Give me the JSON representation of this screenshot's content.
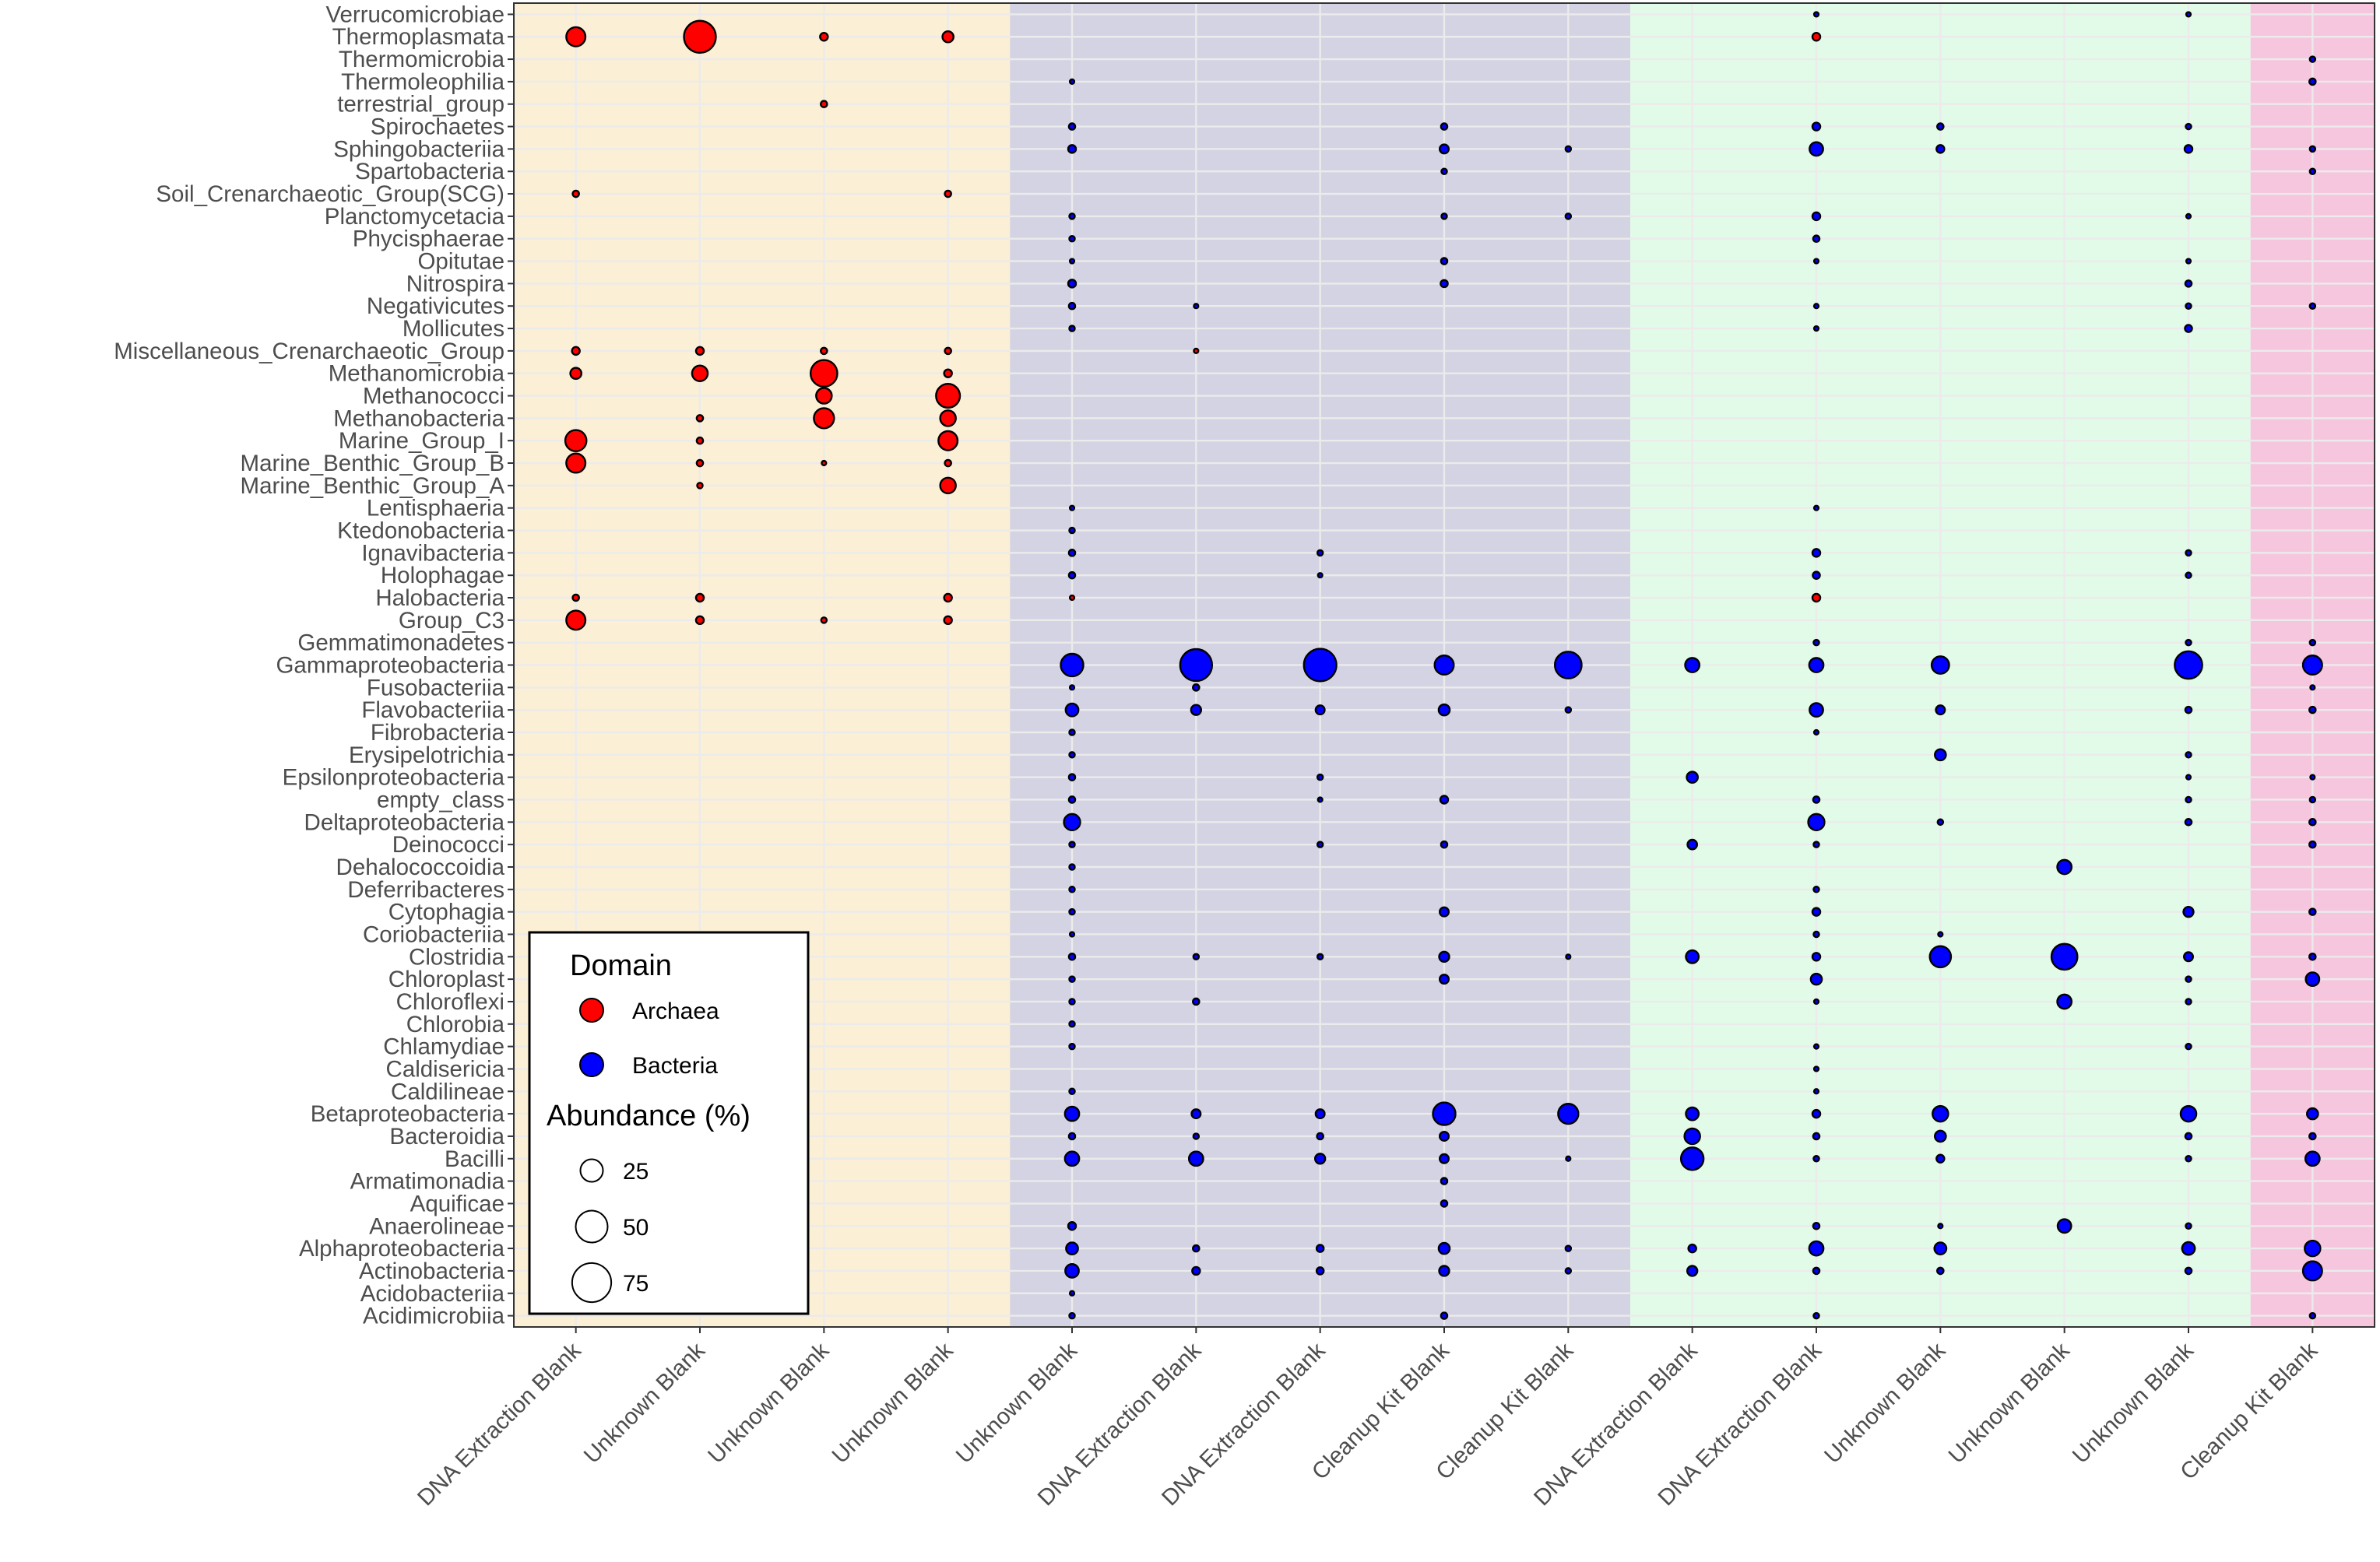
{
  "chart_data": {
    "type": "scatter",
    "title": "",
    "xlabel": "",
    "ylabel": "",
    "x_categories": [
      "DNA Extraction Blank",
      "Unknown Blank",
      "Unknown Blank",
      "Unknown Blank",
      "Unknown Blank",
      "DNA Extraction Blank",
      "DNA Extraction Blank",
      "Cleanup Kit Blank",
      "Cleanup Kit Blank",
      "DNA Extraction Blank",
      "DNA Extraction Blank",
      "Unknown Blank",
      "Unknown Blank",
      "Unknown Blank",
      "Cleanup Kit Blank"
    ],
    "y_categories": [
      "Verrucomicrobiae",
      "Thermoplasmata",
      "Thermomicrobia",
      "Thermoleophilia",
      "terrestrial_group",
      "Spirochaetes",
      "Sphingobacteriia",
      "Spartobacteria",
      "Soil_Crenarchaeotic_Group(SCG)",
      "Planctomycetacia",
      "Phycisphaerae",
      "Opitutae",
      "Nitrospira",
      "Negativicutes",
      "Mollicutes",
      "Miscellaneous_Crenarchaeotic_Group",
      "Methanomicrobia",
      "Methanococci",
      "Methanobacteria",
      "Marine_Group_I",
      "Marine_Benthic_Group_B",
      "Marine_Benthic_Group_A",
      "Lentisphaeria",
      "Ktedonobacteria",
      "Ignavibacteria",
      "Holophagae",
      "Halobacteria",
      "Group_C3",
      "Gemmatimonadetes",
      "Gammaproteobacteria",
      "Fusobacteriia",
      "Flavobacteriia",
      "Fibrobacteria",
      "Erysipelotrichia",
      "Epsilonproteobacteria",
      "empty_class",
      "Deltaproteobacteria",
      "Deinococci",
      "Dehalococcoidia",
      "Deferribacteres",
      "Cytophagia",
      "Coriobacteriia",
      "Clostridia",
      "Chloroplast",
      "Chloroflexi",
      "Chlorobia",
      "Chlamydiae",
      "Caldisericia",
      "Caldilineae",
      "Betaproteobacteria",
      "Bacteroidia",
      "Bacilli",
      "Armatimonadia",
      "Aquificae",
      "Anaerolineae",
      "Alphaproteobacteria",
      "Actinobacteria",
      "Acidobacteriia",
      "Acidimicrobiia"
    ],
    "background_bands": [
      {
        "from": 0,
        "to": 3,
        "color": "#fbefd6"
      },
      {
        "from": 4,
        "to": 8,
        "color": "#d3d3e3"
      },
      {
        "from": 9,
        "to": 13,
        "color": "#e2fbe8"
      },
      {
        "from": 14,
        "to": 14,
        "color": "#f6c6df"
      }
    ],
    "domain_colors": {
      "Archaea": "#ff0000",
      "Bacteria": "#0000ff"
    },
    "legend": {
      "position": "bottom-left",
      "domain_title": "Domain",
      "domain_items": [
        {
          "label": "Archaea",
          "domain": "Archaea"
        },
        {
          "label": "Bacteria",
          "domain": "Bacteria"
        }
      ],
      "size_title": "Abundance (%)",
      "size_items": [
        {
          "label": "25",
          "value": 25
        },
        {
          "label": "50",
          "value": 50
        },
        {
          "label": "75",
          "value": 75
        }
      ]
    },
    "archaea_points": [
      [
        0,
        1,
        18
      ],
      [
        1,
        1,
        50
      ],
      [
        2,
        1,
        3
      ],
      [
        3,
        1,
        6
      ],
      [
        2,
        4,
        2
      ],
      [
        0,
        8,
        2
      ],
      [
        3,
        8,
        2
      ],
      [
        0,
        15,
        3
      ],
      [
        1,
        15,
        3
      ],
      [
        2,
        15,
        2
      ],
      [
        3,
        15,
        2
      ],
      [
        0,
        16,
        6
      ],
      [
        1,
        16,
        12
      ],
      [
        2,
        16,
        35
      ],
      [
        3,
        16,
        3
      ],
      [
        2,
        17,
        12
      ],
      [
        3,
        17,
        28
      ],
      [
        1,
        18,
        2
      ],
      [
        2,
        18,
        20
      ],
      [
        3,
        18,
        12
      ],
      [
        0,
        19,
        22
      ],
      [
        1,
        19,
        2
      ],
      [
        3,
        19,
        18
      ],
      [
        0,
        20,
        18
      ],
      [
        1,
        20,
        2
      ],
      [
        2,
        20,
        1
      ],
      [
        3,
        20,
        2
      ],
      [
        1,
        21,
        1.5
      ],
      [
        3,
        21,
        12
      ],
      [
        0,
        26,
        2
      ],
      [
        1,
        26,
        3
      ],
      [
        3,
        26,
        3
      ],
      [
        4,
        26,
        1
      ],
      [
        0,
        27,
        18
      ],
      [
        1,
        27,
        3
      ],
      [
        2,
        27,
        1.5
      ],
      [
        3,
        27,
        3
      ],
      [
        10,
        1,
        3
      ],
      [
        10,
        26,
        3
      ],
      [
        5,
        15,
        1
      ]
    ],
    "bacteria_rows": {
      "0": [
        [
          10,
          1
        ],
        [
          13,
          1
        ]
      ],
      "2": [
        [
          14,
          1.5
        ]
      ],
      "3": [
        [
          4,
          1
        ],
        [
          14,
          2
        ]
      ],
      "5": [
        [
          4,
          2
        ],
        [
          7,
          2
        ],
        [
          10,
          3
        ],
        [
          11,
          2
        ],
        [
          13,
          1.5
        ]
      ],
      "6": [
        [
          4,
          3
        ],
        [
          7,
          4
        ],
        [
          8,
          1.5
        ],
        [
          10,
          9
        ],
        [
          11,
          3
        ],
        [
          13,
          3
        ],
        [
          14,
          1.5
        ]
      ],
      "7": [
        [
          7,
          1.5
        ],
        [
          14,
          1.5
        ]
      ],
      "9": [
        [
          4,
          1.5
        ],
        [
          7,
          1.5
        ],
        [
          8,
          1.5
        ],
        [
          10,
          3
        ],
        [
          13,
          1
        ]
      ],
      "10": [
        [
          4,
          1.5
        ],
        [
          10,
          2
        ]
      ],
      "11": [
        [
          4,
          1
        ],
        [
          7,
          2
        ],
        [
          10,
          1
        ],
        [
          13,
          1
        ]
      ],
      "12": [
        [
          4,
          3
        ],
        [
          7,
          2.5
        ],
        [
          13,
          2
        ]
      ],
      "13": [
        [
          4,
          2
        ],
        [
          5,
          1
        ],
        [
          10,
          1
        ],
        [
          13,
          1.5
        ],
        [
          14,
          1.5
        ]
      ],
      "14": [
        [
          4,
          1.5
        ],
        [
          10,
          1
        ],
        [
          13,
          2.5
        ]
      ],
      "22": [
        [
          4,
          1
        ],
        [
          10,
          1
        ]
      ],
      "23": [
        [
          4,
          1.5
        ]
      ],
      "24": [
        [
          4,
          2
        ],
        [
          6,
          1.5
        ],
        [
          10,
          3
        ],
        [
          13,
          1.5
        ]
      ],
      "25": [
        [
          4,
          2
        ],
        [
          6,
          1
        ],
        [
          10,
          2.5
        ],
        [
          13,
          1.5
        ]
      ],
      "28": [
        [
          10,
          1.5
        ],
        [
          13,
          1.5
        ],
        [
          14,
          1.5
        ]
      ],
      "29": [
        [
          4,
          25
        ],
        [
          5,
          50
        ],
        [
          6,
          52
        ],
        [
          7,
          18
        ],
        [
          8,
          35
        ],
        [
          9,
          10
        ],
        [
          10,
          10
        ],
        [
          11,
          15
        ],
        [
          13,
          37
        ],
        [
          14,
          18
        ]
      ],
      "30": [
        [
          4,
          1
        ],
        [
          5,
          2
        ],
        [
          14,
          1
        ]
      ],
      "31": [
        [
          4,
          8
        ],
        [
          5,
          5
        ],
        [
          6,
          4
        ],
        [
          7,
          6
        ],
        [
          8,
          1.5
        ],
        [
          10,
          9
        ],
        [
          11,
          4
        ],
        [
          13,
          2
        ],
        [
          14,
          2
        ]
      ],
      "32": [
        [
          4,
          1.5
        ],
        [
          10,
          1
        ]
      ],
      "33": [
        [
          4,
          1.5
        ],
        [
          11,
          6
        ],
        [
          13,
          1.5
        ]
      ],
      "34": [
        [
          4,
          2
        ],
        [
          6,
          1.5
        ],
        [
          9,
          6
        ],
        [
          13,
          1
        ],
        [
          14,
          1
        ]
      ],
      "35": [
        [
          4,
          2
        ],
        [
          6,
          1
        ],
        [
          7,
          3
        ],
        [
          10,
          2
        ],
        [
          13,
          1.5
        ],
        [
          14,
          1.5
        ]
      ],
      "36": [
        [
          4,
          13
        ],
        [
          10,
          13
        ],
        [
          11,
          1.5
        ],
        [
          13,
          2
        ],
        [
          14,
          2
        ]
      ],
      "37": [
        [
          4,
          1.5
        ],
        [
          6,
          1.5
        ],
        [
          7,
          2
        ],
        [
          9,
          4.5
        ],
        [
          10,
          1.5
        ],
        [
          14,
          2
        ]
      ],
      "38": [
        [
          4,
          1.5
        ],
        [
          12,
          10
        ]
      ],
      "39": [
        [
          4,
          1.5
        ],
        [
          10,
          1.5
        ]
      ],
      "40": [
        [
          4,
          1.5
        ],
        [
          7,
          4
        ],
        [
          10,
          3
        ],
        [
          13,
          5
        ],
        [
          14,
          2
        ]
      ],
      "41": [
        [
          4,
          1
        ],
        [
          10,
          1.5
        ],
        [
          11,
          1
        ]
      ],
      "42": [
        [
          4,
          2
        ],
        [
          5,
          1.5
        ],
        [
          6,
          1.5
        ],
        [
          7,
          5
        ],
        [
          8,
          1
        ],
        [
          9,
          8
        ],
        [
          10,
          3
        ],
        [
          11,
          22
        ],
        [
          12,
          33
        ],
        [
          13,
          4
        ],
        [
          14,
          2
        ]
      ],
      "43": [
        [
          4,
          1.5
        ],
        [
          7,
          4
        ],
        [
          10,
          6
        ],
        [
          13,
          1.5
        ],
        [
          14,
          9
        ]
      ],
      "44": [
        [
          4,
          1.5
        ],
        [
          5,
          2
        ],
        [
          10,
          1
        ],
        [
          12,
          10
        ],
        [
          13,
          1.5
        ]
      ],
      "45": [
        [
          4,
          1.5
        ]
      ],
      "46": [
        [
          4,
          1.5
        ],
        [
          10,
          1
        ],
        [
          13,
          1.5
        ]
      ],
      "47": [
        [
          10,
          1
        ]
      ],
      "48": [
        [
          4,
          1.5
        ],
        [
          10,
          1
        ]
      ],
      "49": [
        [
          4,
          10
        ],
        [
          5,
          4
        ],
        [
          6,
          4
        ],
        [
          7,
          25
        ],
        [
          8,
          20
        ],
        [
          9,
          8
        ],
        [
          10,
          3
        ],
        [
          11,
          12
        ],
        [
          13,
          12
        ],
        [
          14,
          6
        ]
      ],
      "50": [
        [
          4,
          2
        ],
        [
          5,
          1.5
        ],
        [
          6,
          2
        ],
        [
          7,
          4
        ],
        [
          9,
          12
        ],
        [
          10,
          2
        ],
        [
          11,
          6
        ],
        [
          13,
          2
        ],
        [
          14,
          2
        ]
      ],
      "51": [
        [
          4,
          10
        ],
        [
          5,
          10
        ],
        [
          6,
          5
        ],
        [
          7,
          4
        ],
        [
          8,
          1
        ],
        [
          9,
          25
        ],
        [
          10,
          1.5
        ],
        [
          11,
          3
        ],
        [
          13,
          1.5
        ],
        [
          14,
          10
        ]
      ],
      "52": [
        [
          7,
          2
        ]
      ],
      "53": [
        [
          7,
          2
        ]
      ],
      "54": [
        [
          4,
          3
        ],
        [
          10,
          2
        ],
        [
          11,
          1
        ],
        [
          12,
          9
        ],
        [
          13,
          1.5
        ]
      ],
      "55": [
        [
          4,
          7
        ],
        [
          5,
          2
        ],
        [
          6,
          2.5
        ],
        [
          7,
          6
        ],
        [
          8,
          1.5
        ],
        [
          9,
          3
        ],
        [
          10,
          10
        ],
        [
          11,
          7
        ],
        [
          13,
          8
        ],
        [
          14,
          12
        ]
      ],
      "56": [
        [
          4,
          9
        ],
        [
          5,
          3
        ],
        [
          6,
          2.5
        ],
        [
          7,
          5
        ],
        [
          8,
          1.5
        ],
        [
          9,
          5
        ],
        [
          10,
          2
        ],
        [
          11,
          2
        ],
        [
          13,
          2
        ],
        [
          14,
          18
        ]
      ],
      "57": [
        [
          4,
          1
        ]
      ],
      "58": [
        [
          4,
          1.5
        ],
        [
          7,
          2
        ],
        [
          10,
          1.5
        ],
        [
          14,
          1.5
        ]
      ]
    }
  }
}
